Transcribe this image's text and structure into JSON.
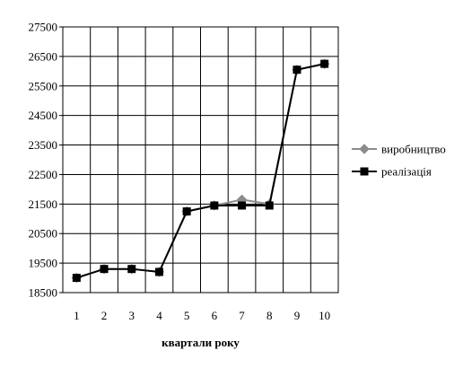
{
  "chart_data": {
    "type": "line",
    "title": "",
    "xlabel": "квартали року",
    "ylabel": "",
    "categories": [
      "1",
      "2",
      "3",
      "4",
      "5",
      "6",
      "7",
      "8",
      "9",
      "10"
    ],
    "ylim": [
      18500,
      27500
    ],
    "yticks": [
      "18500",
      "19500",
      "20500",
      "21500",
      "22500",
      "23500",
      "24500",
      "25500",
      "26500",
      "27500"
    ],
    "grid": true,
    "legend_position": "right",
    "series": [
      {
        "name": "виробництво",
        "marker": "diamond",
        "color": "#8c8c8c",
        "values": [
          19000,
          19300,
          19300,
          19200,
          21250,
          21450,
          21650,
          21500,
          26050,
          26250
        ]
      },
      {
        "name": "реалізація",
        "marker": "square",
        "color": "#000000",
        "values": [
          19000,
          19300,
          19300,
          19200,
          21250,
          21450,
          21450,
          21450,
          26050,
          26250
        ]
      }
    ]
  }
}
